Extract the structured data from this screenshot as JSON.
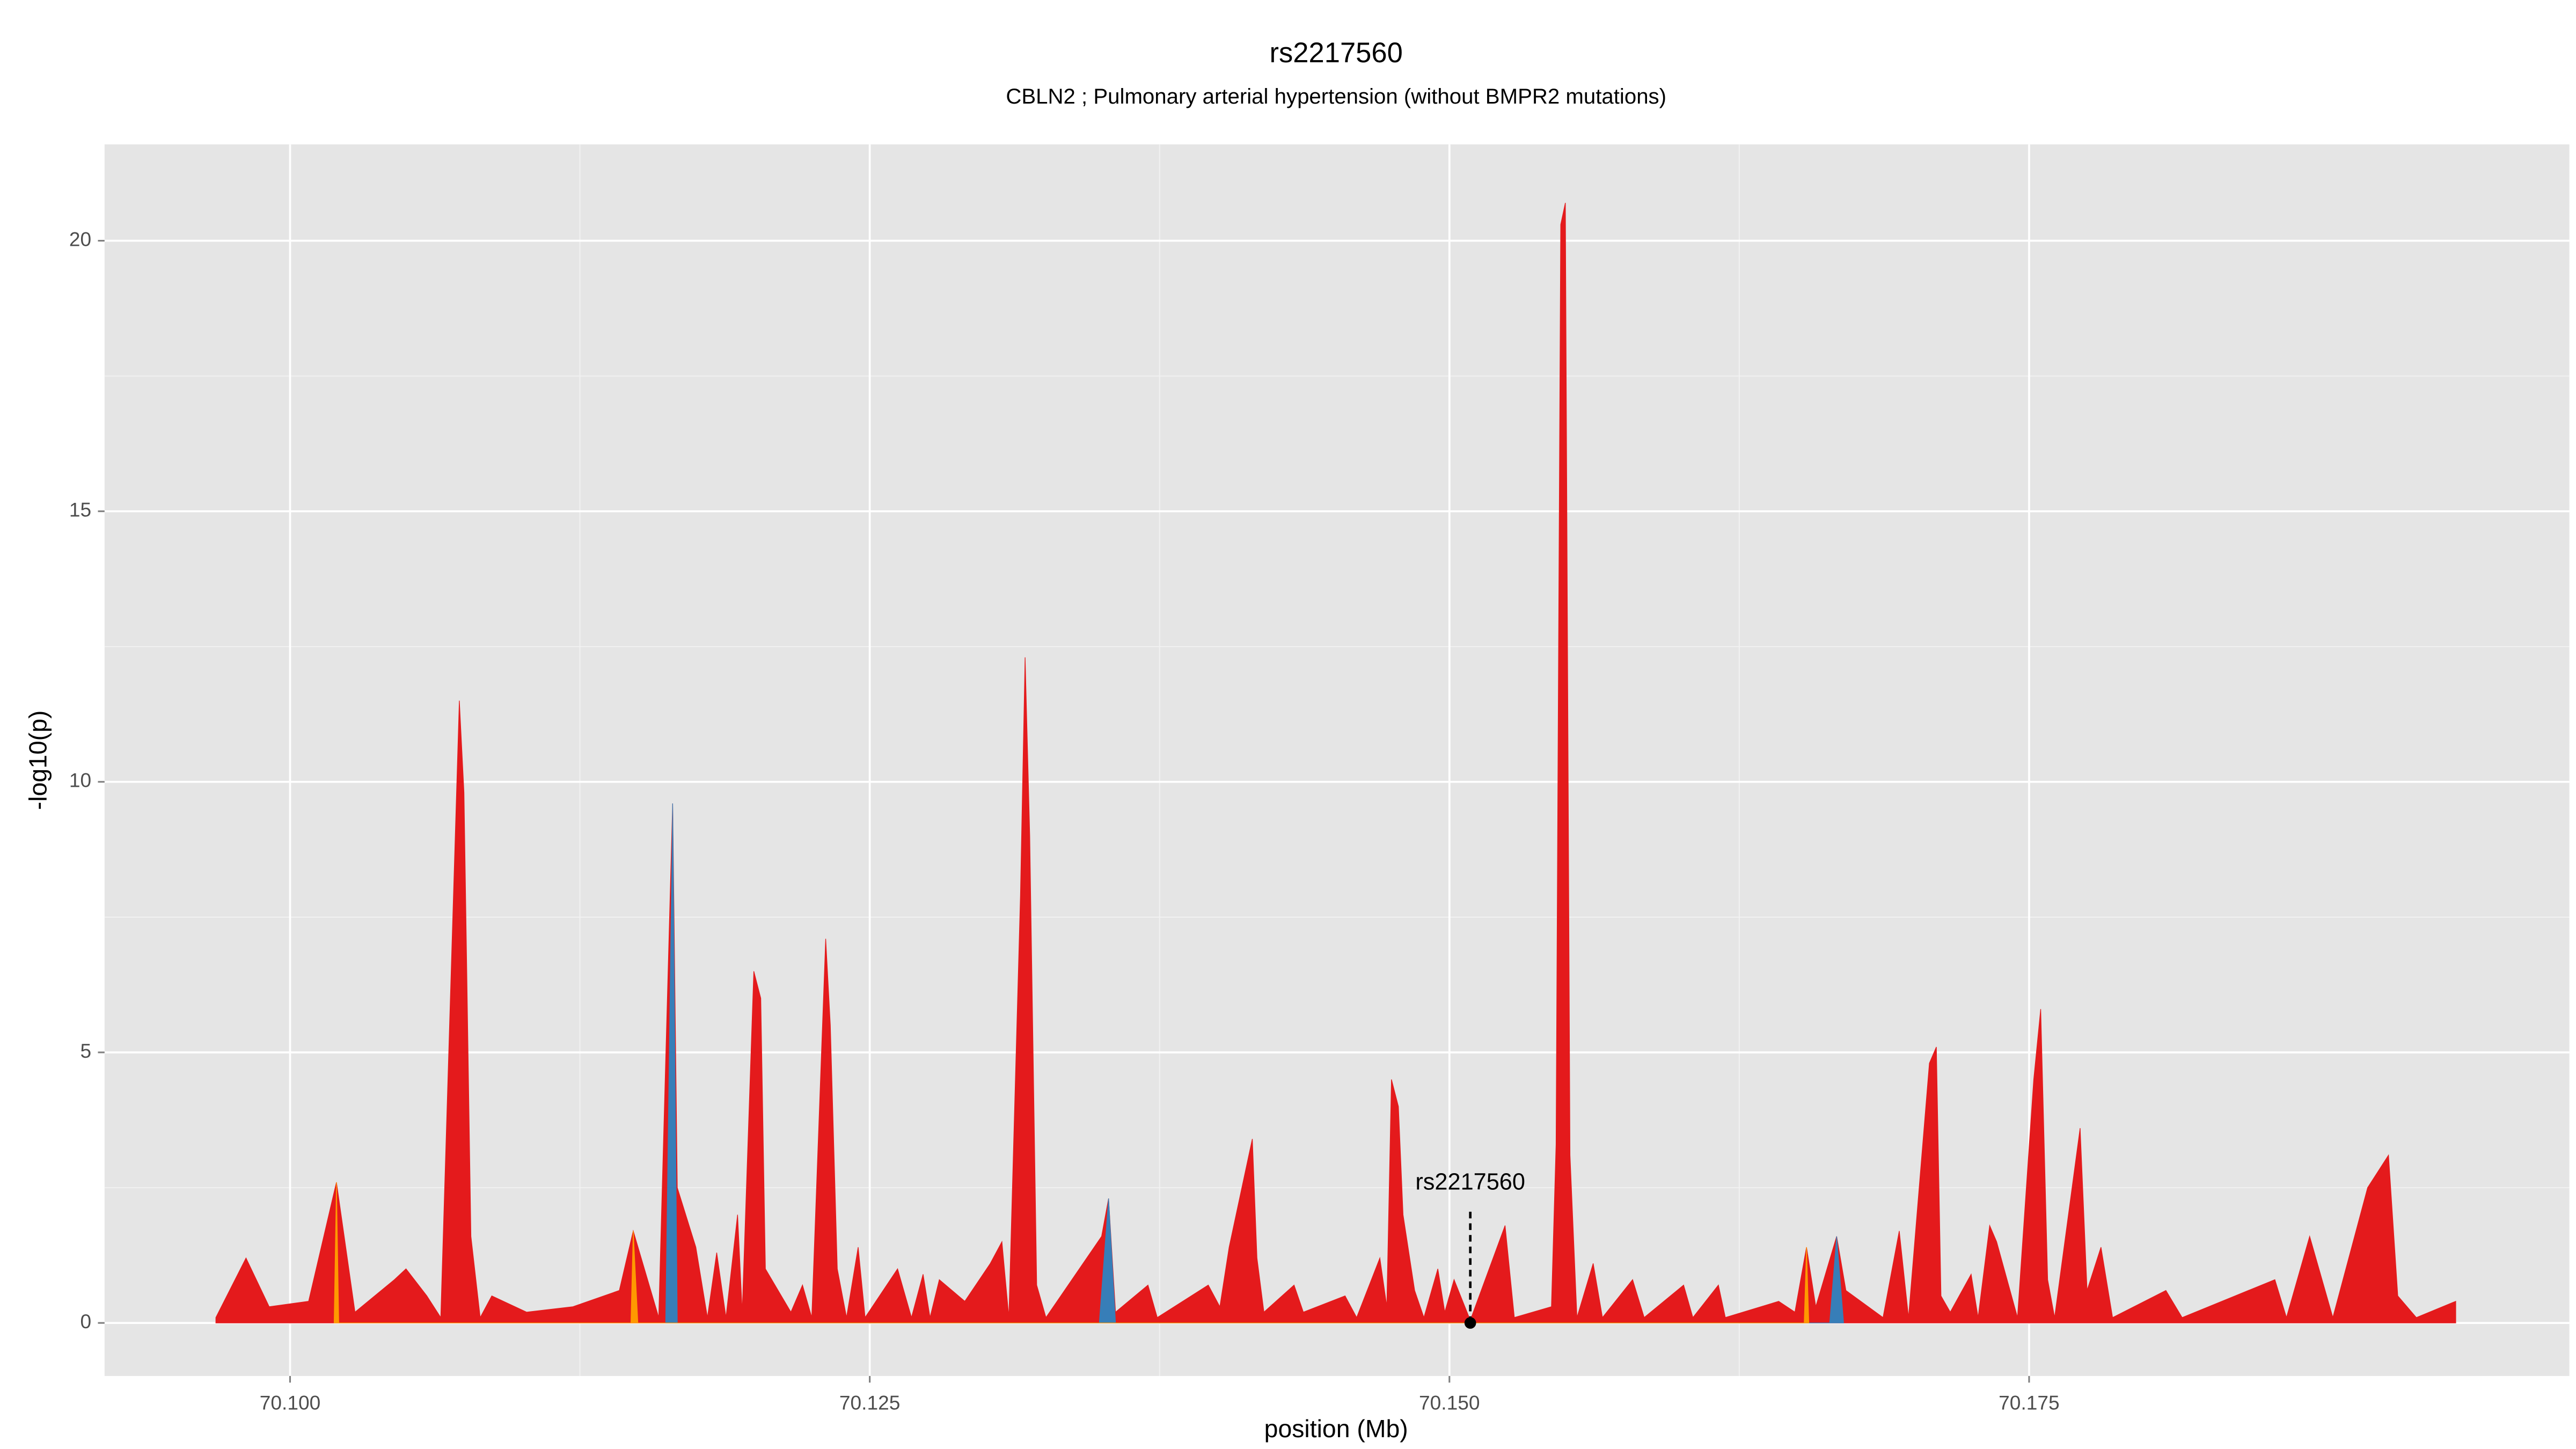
{
  "chart_data": {
    "type": "area",
    "title": "rs2217560",
    "subtitle": "CBLN2 ; Pulmonary arterial hypertension (without BMPR2 mutations)",
    "x_label": "position (Mb)",
    "y_label": "-log10(p)",
    "xlim": [
      70.092,
      70.1983
    ],
    "ylim": [
      -0.98,
      21.78
    ],
    "xticks": [
      {
        "value": 70.1,
        "label": "70.100"
      },
      {
        "value": 70.125,
        "label": "70.125"
      },
      {
        "value": 70.15,
        "label": "70.150"
      },
      {
        "value": 70.175,
        "label": "70.175"
      }
    ],
    "yticks": [
      0,
      5,
      10,
      15,
      20
    ],
    "grid": true,
    "series": [
      {
        "color": "#e41a1c",
        "x": [
          70.0968,
          70.0981,
          70.0991,
          70.1008,
          70.102,
          70.1028,
          70.1045,
          70.105,
          70.1059,
          70.1065,
          70.1073,
          70.1075,
          70.1078,
          70.1082,
          70.1087,
          70.1102,
          70.1122,
          70.1142,
          70.1148,
          70.1159,
          70.1165,
          70.1167,
          70.1175,
          70.118,
          70.1184,
          70.1188,
          70.1193,
          70.1195,
          70.12,
          70.1203,
          70.1205,
          70.1216,
          70.1221,
          70.1225,
          70.1231,
          70.1233,
          70.1236,
          70.124,
          70.1245,
          70.1248,
          70.1262,
          70.1268,
          70.1273,
          70.1276,
          70.128,
          70.1291,
          70.1302,
          70.1307,
          70.131,
          70.1315,
          70.1317,
          70.1319,
          70.1322,
          70.1326,
          70.135,
          70.1353,
          70.1356,
          70.137,
          70.1374,
          70.1396,
          70.1401,
          70.1405,
          70.1415,
          70.1417,
          70.142,
          70.1433,
          70.1437,
          70.1455,
          70.146,
          70.147,
          70.1473,
          70.1475,
          70.1478,
          70.148,
          70.1485,
          70.1489,
          70.1495,
          70.1498,
          70.1502,
          70.1509,
          70.1524,
          70.1528,
          70.1544,
          70.1546,
          70.1548,
          70.155,
          70.1552,
          70.1555,
          70.1562,
          70.1566,
          70.1579,
          70.1584,
          70.1601,
          70.1605,
          70.1616,
          70.1619,
          70.1642,
          70.1649,
          70.1654,
          70.1658,
          70.1667,
          70.1671,
          70.1687,
          70.1694,
          70.1698,
          70.1707,
          70.171,
          70.1712,
          70.1716,
          70.1725,
          70.1728,
          70.1733,
          70.1736,
          70.1745,
          70.1752,
          70.1755,
          70.1758,
          70.1761,
          70.1772,
          70.1775,
          70.1781,
          70.1786,
          70.1809,
          70.1816,
          70.1856,
          70.1861,
          70.1871,
          70.1881,
          70.1896,
          70.1905,
          70.1909,
          70.1917,
          70.1934
        ],
        "values": [
          0.1,
          1.2,
          0.3,
          0.4,
          2.6,
          0.2,
          0.8,
          1.0,
          0.5,
          0.1,
          11.5,
          9.8,
          1.6,
          0.1,
          0.5,
          0.2,
          0.3,
          0.6,
          1.7,
          0.1,
          9.6,
          2.5,
          1.4,
          0.1,
          1.3,
          0.1,
          2.0,
          0.2,
          6.5,
          6.0,
          1.0,
          0.2,
          0.7,
          0.1,
          7.1,
          5.5,
          1.0,
          0.1,
          1.4,
          0.1,
          1.0,
          0.1,
          0.9,
          0.1,
          0.8,
          0.4,
          1.1,
          1.5,
          0.1,
          7.9,
          12.3,
          9.0,
          0.7,
          0.1,
          1.6,
          2.3,
          0.2,
          0.7,
          0.1,
          0.7,
          0.3,
          1.4,
          3.4,
          1.2,
          0.2,
          0.7,
          0.2,
          0.5,
          0.1,
          1.2,
          0.3,
          4.5,
          4.0,
          2.0,
          0.6,
          0.1,
          1.0,
          0.2,
          0.8,
          0.05,
          1.8,
          0.1,
          0.3,
          3.3,
          20.3,
          20.7,
          3.1,
          0.1,
          1.1,
          0.1,
          0.8,
          0.1,
          0.7,
          0.1,
          0.7,
          0.1,
          0.4,
          0.2,
          1.4,
          0.3,
          1.6,
          0.6,
          0.1,
          1.7,
          0.1,
          4.8,
          5.1,
          0.5,
          0.2,
          0.9,
          0.1,
          1.8,
          1.5,
          0.1,
          4.5,
          5.8,
          0.8,
          0.1,
          3.6,
          0.6,
          1.4,
          0.1,
          0.6,
          0.1,
          0.8,
          0.1,
          1.6,
          0.1,
          2.5,
          3.1,
          0.5,
          0.1,
          0.4
        ]
      },
      {
        "color": "#377eb8",
        "x": [
          70.1162,
          70.1165,
          70.1167,
          70.1349,
          70.1353,
          70.1356,
          70.1664,
          70.1667,
          70.167
        ],
        "values": [
          0,
          9.6,
          0,
          0,
          2.3,
          0,
          0,
          1.6,
          0
        ]
      },
      {
        "color": "#ff9900",
        "x": [
          70.1019,
          70.102,
          70.1021,
          70.1147,
          70.1148,
          70.115,
          70.1653,
          70.1654,
          70.1655
        ],
        "values": [
          0,
          2.6,
          0,
          0,
          1.7,
          0,
          0,
          1.4,
          0
        ]
      }
    ],
    "annotation": {
      "label": "rs2217560",
      "x": 70.1509,
      "y": 0
    }
  }
}
